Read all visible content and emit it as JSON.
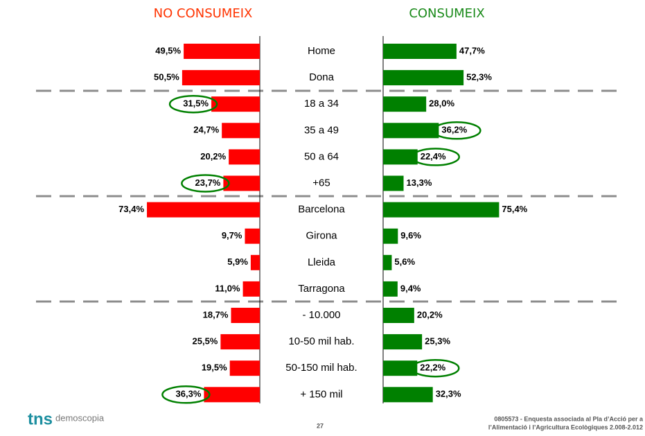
{
  "chart_data": {
    "type": "butterfly",
    "categories": [
      "Home",
      "Dona",
      "18 a 34",
      "35 a 49",
      "50 a 64",
      "+65",
      "Barcelona",
      "Girona",
      "Lleida",
      "Tarragona",
      "- 10.000",
      "10-50 mil hab.",
      "50-150 mil hab.",
      "+ 150 mil"
    ],
    "series": [
      {
        "name": "NO CONSUMEIX",
        "color": "#ff0000",
        "title_color": "#ff3300",
        "side": "left",
        "values": [
          49.5,
          50.5,
          31.5,
          24.7,
          20.2,
          23.7,
          73.4,
          9.7,
          5.9,
          11.0,
          18.7,
          25.5,
          19.5,
          36.3
        ],
        "value_labels": [
          "49,5%",
          "50,5%",
          "31,5%",
          "24,7%",
          "20,2%",
          "23,7%",
          "73,4%",
          "9,7%",
          "5,9%",
          "11,0%",
          "18,7%",
          "25,5%",
          "19,5%",
          "36,3%"
        ],
        "highlight": [
          2,
          5,
          13
        ]
      },
      {
        "name": "CONSUMEIX",
        "color": "#008000",
        "title_color": "#1a8a1a",
        "side": "right",
        "values": [
          47.7,
          52.3,
          28.0,
          36.2,
          22.4,
          13.3,
          75.4,
          9.6,
          5.6,
          9.4,
          20.2,
          25.3,
          22.2,
          32.3
        ],
        "value_labels": [
          "47,7%",
          "52,3%",
          "28,0%",
          "36,2%",
          "22,4%",
          "13,3%",
          "75,4%",
          "9,6%",
          "5,6%",
          "9,4%",
          "20,2%",
          "25,3%",
          "22,2%",
          "32,3%"
        ],
        "highlight": [
          3,
          4,
          12
        ]
      }
    ],
    "highlight_color": "#008000"
  },
  "footer": {
    "logo": "tns",
    "logo_sub": "demoscopia",
    "page": "27",
    "note": [
      "0805573 - Enquesta associada al Pla d’Acció per a",
      "l’Alimentació i l’Agricultura Ecològiques 2.008-2.012"
    ]
  }
}
